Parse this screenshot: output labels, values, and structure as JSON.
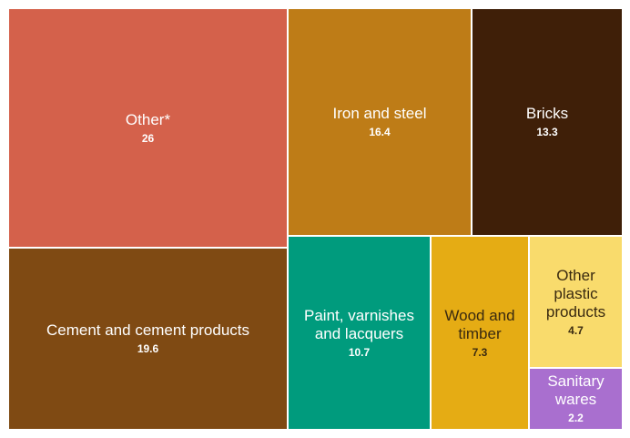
{
  "chart_data": {
    "type": "treemap",
    "items": [
      {
        "label": "Other*",
        "value": 26,
        "color": "#d4614b",
        "text_color": "#ffffff"
      },
      {
        "label": "Iron and steel",
        "value": 16.4,
        "color": "#be7c17",
        "text_color": "#ffffff"
      },
      {
        "label": "Bricks",
        "value": 13.3,
        "color": "#3f1f08",
        "text_color": "#ffffff"
      },
      {
        "label": "Cement and cement products",
        "value": 19.6,
        "color": "#7f4a13",
        "text_color": "#ffffff"
      },
      {
        "label": "Paint, varnishes and lacquers",
        "value": 10.7,
        "color": "#009b7d",
        "text_color": "#ffffff"
      },
      {
        "label": "Wood and timber",
        "value": 7.3,
        "color": "#e5ac14",
        "text_color": "#3a2a10"
      },
      {
        "label": "Other plastic products",
        "value": 4.7,
        "color": "#f9db6c",
        "text_color": "#3a2a10"
      },
      {
        "label": "Sanitary wares",
        "value": 2.2,
        "color": "#a96fcf",
        "text_color": "#ffffff"
      }
    ]
  }
}
